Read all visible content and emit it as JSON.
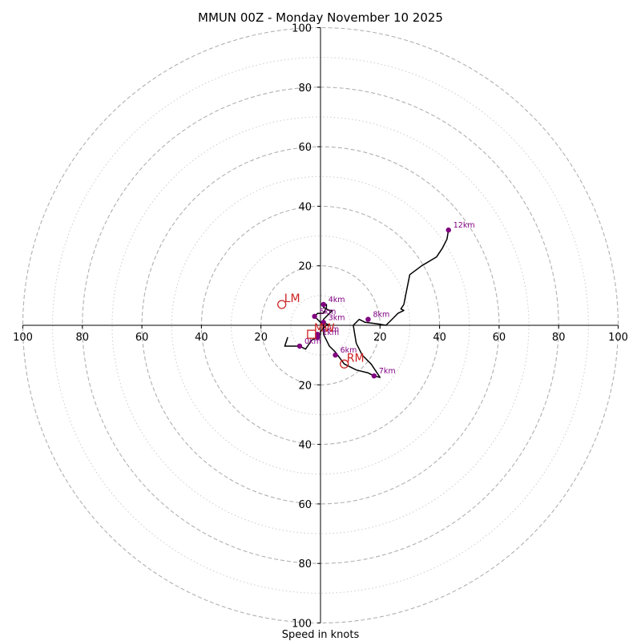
{
  "chart_data": {
    "type": "hodograph",
    "title": "MMUN 00Z - Monday November 10 2025",
    "xlabel": "Speed in knots",
    "range": [
      -100,
      100
    ],
    "ring_major": [
      20,
      40,
      60,
      80,
      100
    ],
    "ring_minor": [
      10,
      30,
      50,
      70,
      90
    ],
    "x_ticks": [
      "100",
      "80",
      "60",
      "40",
      "20",
      "20",
      "40",
      "60",
      "80",
      "100"
    ],
    "x_tick_values": [
      -100,
      -80,
      -60,
      -40,
      -20,
      20,
      40,
      60,
      80,
      100
    ],
    "y_ticks": [
      "100",
      "80",
      "60",
      "40",
      "20",
      "20",
      "40",
      "60",
      "80",
      "100"
    ],
    "y_tick_values": [
      100,
      80,
      60,
      40,
      20,
      -20,
      -40,
      -60,
      -80,
      -100
    ],
    "wind_trace": [
      [
        -11,
        -4
      ],
      [
        -12,
        -7
      ],
      [
        -9,
        -7
      ],
      [
        -7,
        -7
      ],
      [
        -5,
        -8
      ],
      [
        -3,
        -5
      ],
      [
        -1,
        -4
      ],
      [
        0,
        -3
      ],
      [
        0,
        -2
      ],
      [
        1,
        -1
      ],
      [
        2,
        0
      ],
      [
        3,
        0
      ],
      [
        1,
        1
      ],
      [
        0,
        1
      ],
      [
        -1,
        2
      ],
      [
        -2,
        3
      ],
      [
        -1,
        4
      ],
      [
        1,
        4
      ],
      [
        2,
        6
      ],
      [
        2,
        7
      ],
      [
        1,
        7
      ],
      [
        1,
        6
      ],
      [
        3,
        5
      ],
      [
        4,
        5
      ],
      [
        3,
        4
      ],
      [
        2,
        3
      ],
      [
        1,
        2
      ],
      [
        1,
        0
      ],
      [
        1,
        -3
      ],
      [
        2,
        -5
      ],
      [
        3,
        -7
      ],
      [
        5,
        -9
      ],
      [
        8,
        -13
      ],
      [
        12,
        -15
      ],
      [
        16,
        -16
      ],
      [
        18,
        -17
      ],
      [
        20,
        -17.5
      ],
      [
        17,
        -13
      ],
      [
        14,
        -10
      ],
      [
        12,
        -6
      ],
      [
        11,
        0
      ],
      [
        13,
        2
      ],
      [
        15,
        1
      ],
      [
        19,
        0.5
      ],
      [
        22,
        0
      ],
      [
        24,
        2
      ],
      [
        26,
        4
      ],
      [
        28,
        5
      ],
      [
        27,
        5.5
      ],
      [
        28,
        7
      ],
      [
        29,
        12
      ],
      [
        30,
        17
      ],
      [
        34,
        20
      ],
      [
        39,
        23
      ],
      [
        41,
        26
      ],
      [
        42.5,
        29
      ],
      [
        43,
        32
      ]
    ],
    "height_markers": [
      {
        "label": "0km",
        "u": -7,
        "v": -7,
        "lx": 6,
        "ly": -3
      },
      {
        "label": "1km",
        "u": -1,
        "v": -4,
        "lx": 6,
        "ly": -3
      },
      {
        "label": "2km",
        "u": -1,
        "v": -3,
        "lx": 6,
        "ly": -3
      },
      {
        "label": "3km",
        "u": 1,
        "v": 1,
        "lx": 6,
        "ly": -3
      },
      {
        "label": "4km",
        "u": 1,
        "v": 7,
        "lx": 6,
        "ly": -3
      },
      {
        "label": "5km",
        "u": -2,
        "v": 3,
        "lx": 6,
        "ly": -3
      },
      {
        "label": "6km",
        "u": 5,
        "v": -10,
        "lx": 6,
        "ly": -3
      },
      {
        "label": "7km",
        "u": 18,
        "v": -17,
        "lx": 6,
        "ly": -3
      },
      {
        "label": "8km",
        "u": 16,
        "v": 2,
        "lx": 6,
        "ly": -3
      },
      {
        "label": "12km",
        "u": 43,
        "v": 32,
        "lx": 6,
        "ly": -3
      }
    ],
    "storm_motion": [
      {
        "label": "LM",
        "u": -13,
        "v": 7,
        "color": "#cc2222",
        "shape": "circle"
      },
      {
        "label": "RM",
        "u": 8,
        "v": -13,
        "color": "#cc2222",
        "shape": "circle"
      },
      {
        "label": "MW",
        "u": -3,
        "v": -3,
        "color": "#cc2222",
        "shape": "square"
      }
    ],
    "colors": {
      "trace": "#000000",
      "marker": "#800080",
      "ring": "#b0b0b0",
      "ring_minor": "#cccccc"
    }
  }
}
